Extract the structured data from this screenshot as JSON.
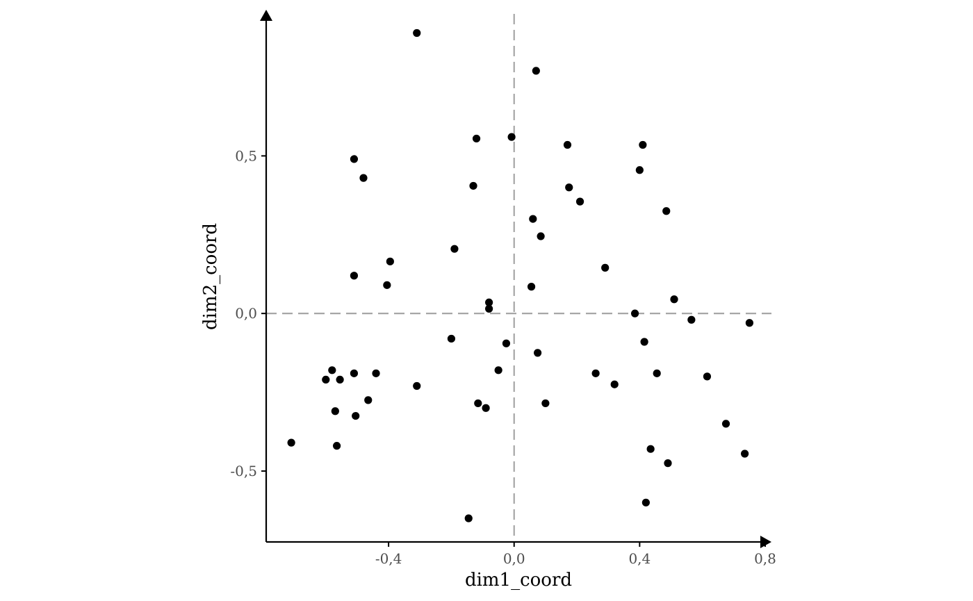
{
  "chart_data": {
    "type": "scatter",
    "xlabel": "dim1_coord",
    "ylabel": "dim2_coord",
    "xlim": [
      -0.79,
      0.82
    ],
    "ylim": [
      -0.725,
      0.955
    ],
    "x_ticks": [
      -0.4,
      0.0,
      0.4,
      0.8
    ],
    "x_tick_labels": [
      "-0,4",
      "0,0",
      "0,4",
      "0,8"
    ],
    "y_ticks": [
      -0.5,
      0.0,
      0.5
    ],
    "y_tick_labels": [
      "-0,5",
      "0,0",
      "0,5"
    ],
    "reference_lines": {
      "x": 0.0,
      "y": 0.0,
      "style": "dashed",
      "color": "#a6a6a6"
    },
    "grid": false,
    "point_color": "#000000",
    "points": [
      {
        "x": -0.71,
        "y": -0.41
      },
      {
        "x": -0.6,
        "y": -0.21
      },
      {
        "x": -0.58,
        "y": -0.18
      },
      {
        "x": -0.57,
        "y": -0.31
      },
      {
        "x": -0.565,
        "y": -0.42
      },
      {
        "x": -0.555,
        "y": -0.21
      },
      {
        "x": -0.51,
        "y": 0.49
      },
      {
        "x": -0.51,
        "y": 0.12
      },
      {
        "x": -0.51,
        "y": -0.19
      },
      {
        "x": -0.505,
        "y": -0.325
      },
      {
        "x": -0.48,
        "y": 0.43
      },
      {
        "x": -0.465,
        "y": -0.275
      },
      {
        "x": -0.44,
        "y": -0.19
      },
      {
        "x": -0.405,
        "y": 0.09
      },
      {
        "x": -0.395,
        "y": 0.165
      },
      {
        "x": -0.31,
        "y": 0.89
      },
      {
        "x": -0.31,
        "y": -0.23
      },
      {
        "x": -0.2,
        "y": -0.08
      },
      {
        "x": -0.19,
        "y": 0.205
      },
      {
        "x": -0.145,
        "y": -0.65
      },
      {
        "x": -0.13,
        "y": 0.405
      },
      {
        "x": -0.12,
        "y": 0.555
      },
      {
        "x": -0.115,
        "y": -0.285
      },
      {
        "x": -0.09,
        "y": -0.3
      },
      {
        "x": -0.08,
        "y": 0.035
      },
      {
        "x": -0.08,
        "y": 0.015
      },
      {
        "x": -0.05,
        "y": -0.18
      },
      {
        "x": -0.025,
        "y": -0.095
      },
      {
        "x": -0.008,
        "y": 0.56
      },
      {
        "x": 0.055,
        "y": 0.085
      },
      {
        "x": 0.06,
        "y": 0.3
      },
      {
        "x": 0.07,
        "y": 0.77
      },
      {
        "x": 0.075,
        "y": -0.125
      },
      {
        "x": 0.085,
        "y": 0.245
      },
      {
        "x": 0.1,
        "y": -0.285
      },
      {
        "x": 0.17,
        "y": 0.535
      },
      {
        "x": 0.175,
        "y": 0.4
      },
      {
        "x": 0.21,
        "y": 0.355
      },
      {
        "x": 0.26,
        "y": -0.19
      },
      {
        "x": 0.29,
        "y": 0.145
      },
      {
        "x": 0.32,
        "y": -0.225
      },
      {
        "x": 0.385,
        "y": 0.0
      },
      {
        "x": 0.4,
        "y": 0.455
      },
      {
        "x": 0.41,
        "y": 0.535
      },
      {
        "x": 0.415,
        "y": -0.09
      },
      {
        "x": 0.42,
        "y": -0.6
      },
      {
        "x": 0.435,
        "y": -0.43
      },
      {
        "x": 0.455,
        "y": -0.19
      },
      {
        "x": 0.485,
        "y": 0.325
      },
      {
        "x": 0.49,
        "y": -0.475
      },
      {
        "x": 0.51,
        "y": 0.045
      },
      {
        "x": 0.565,
        "y": -0.02
      },
      {
        "x": 0.615,
        "y": -0.2
      },
      {
        "x": 0.675,
        "y": -0.35
      },
      {
        "x": 0.735,
        "y": -0.445
      },
      {
        "x": 0.75,
        "y": -0.03
      }
    ]
  }
}
